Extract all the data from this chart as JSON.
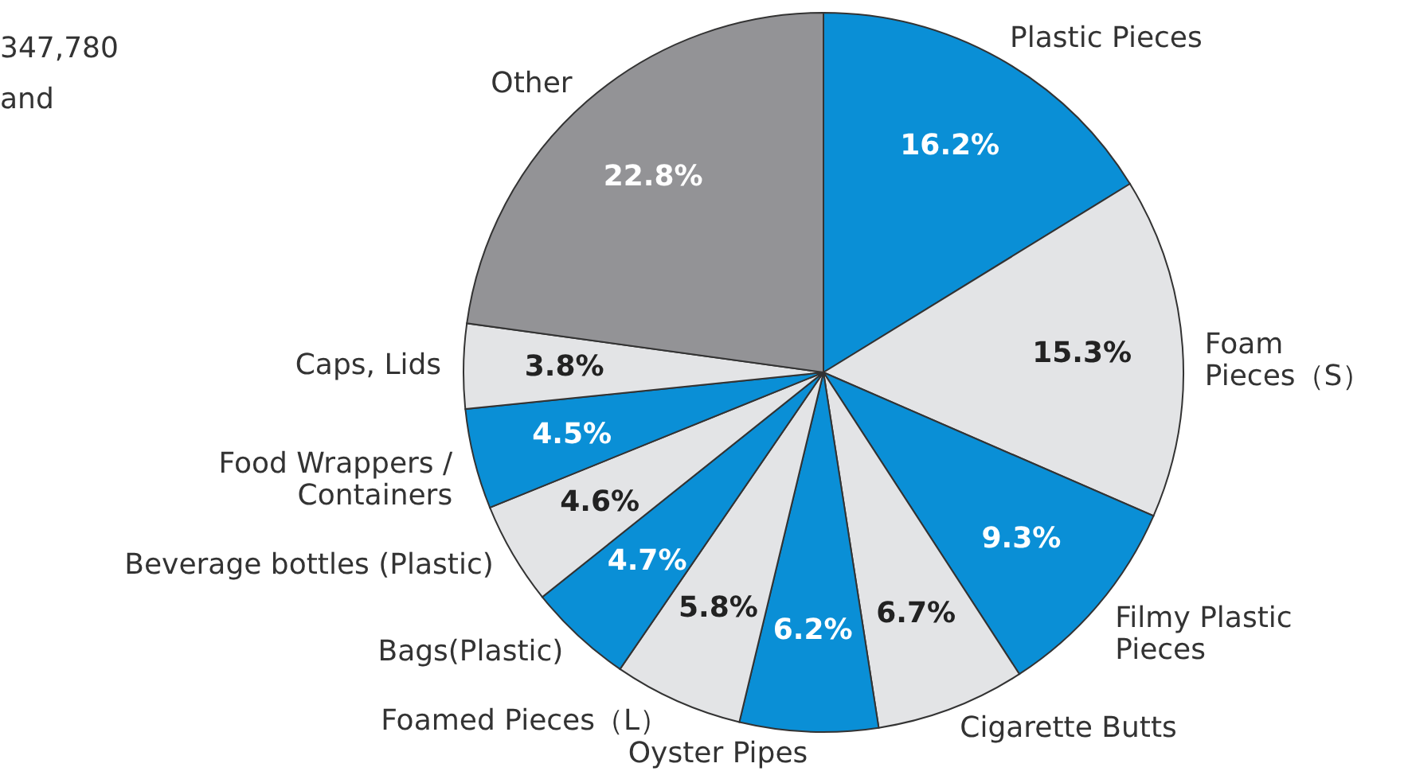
{
  "chart_data": {
    "type": "pie",
    "categories": [
      "Plastic Pieces",
      "Foam\nPieces（S）",
      "Filmy Plastic\nPieces",
      "Cigarette Butts",
      "Oyster Pipes",
      "Foamed Pieces（L）",
      "Bags(Plastic)",
      "Beverage bottles (Plastic)",
      "Food Wrappers /\nContainers",
      "Caps, Lids",
      "Other"
    ],
    "values": [
      16.2,
      15.3,
      9.3,
      6.7,
      6.2,
      5.8,
      4.7,
      4.6,
      4.5,
      3.8,
      22.8
    ],
    "value_labels": [
      "16.2%",
      "15.3%",
      "9.3%",
      "6.7%",
      "6.2%",
      "5.8%",
      "4.7%",
      "4.6%",
      "4.5%",
      "3.8%",
      "22.8%"
    ],
    "colors": [
      "#0a8fd6",
      "#e3e4e6",
      "#0a8fd6",
      "#e3e4e6",
      "#0a8fd6",
      "#e3e4e6",
      "#0a8fd6",
      "#e3e4e6",
      "#0a8fd6",
      "#e3e4e6",
      "#939396"
    ],
    "annotations": [
      "347,780\nand"
    ]
  }
}
